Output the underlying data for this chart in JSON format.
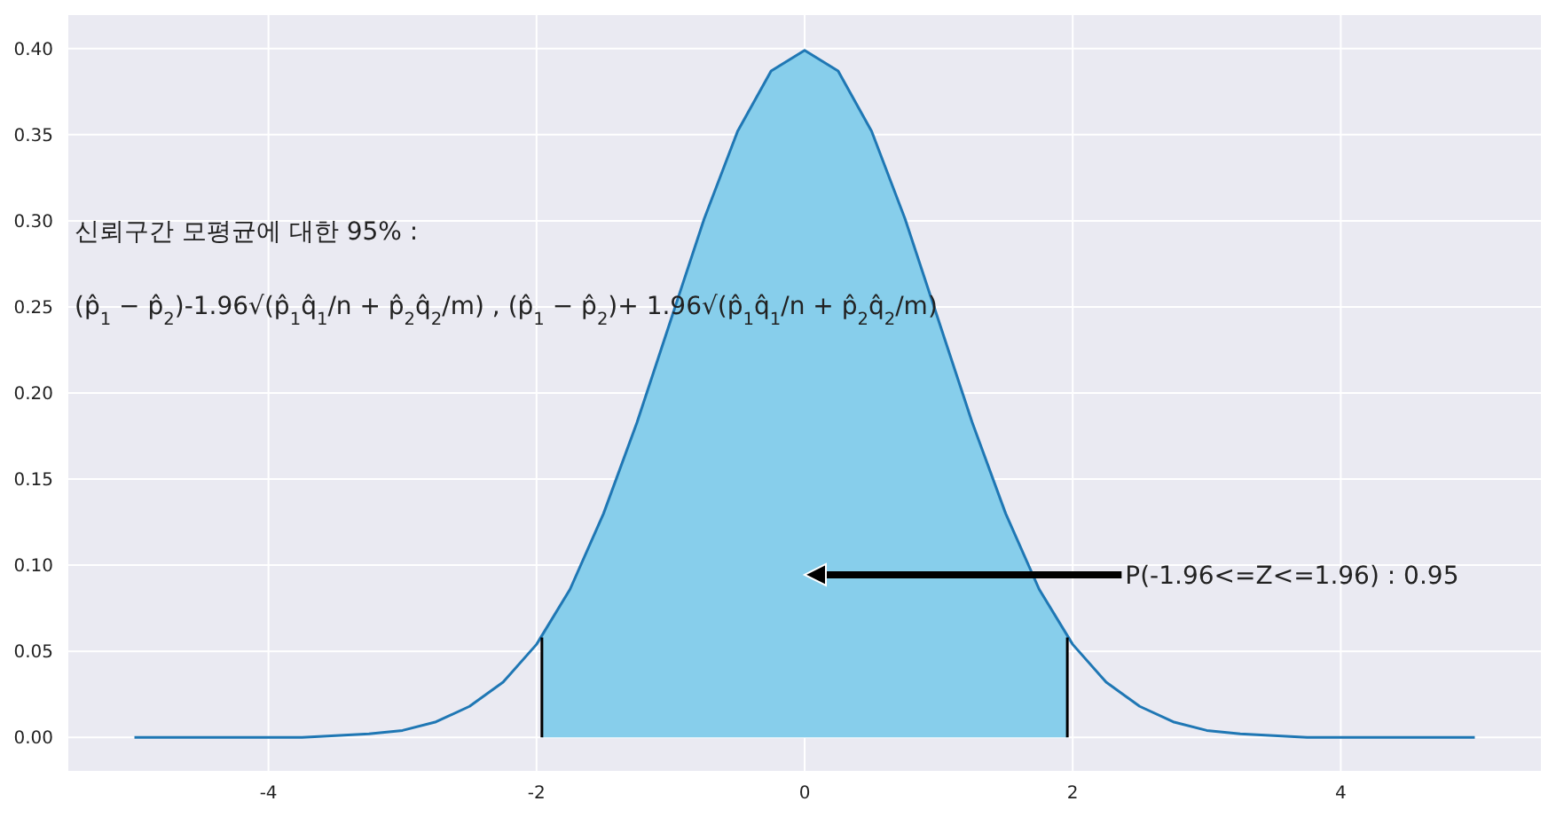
{
  "chart_data": {
    "type": "line",
    "xlim": [
      -5.5,
      5.5
    ],
    "xticks": [
      -4,
      -2,
      0,
      2,
      4
    ],
    "ylim": [
      -0.02,
      0.42
    ],
    "yticks": [
      {
        "value": 0,
        "label": "0.00"
      },
      {
        "value": 0.05,
        "label": "0.05"
      },
      {
        "value": 0.1,
        "label": "0.10"
      },
      {
        "value": 0.15,
        "label": "0.15"
      },
      {
        "value": 0.2,
        "label": "0.20"
      },
      {
        "value": 0.25,
        "label": "0.25"
      },
      {
        "value": 0.3,
        "label": "0.30"
      },
      {
        "value": 0.35,
        "label": "0.35"
      },
      {
        "value": 0.4,
        "label": "0.40"
      }
    ],
    "grid": true,
    "series": [
      {
        "type": "area",
        "color": "#87ceeb",
        "x": [
          -1.96,
          -1.75,
          -1.5,
          -1.25,
          -1,
          -0.75,
          -0.5,
          -0.25,
          0,
          0.25,
          0.5,
          0.75,
          1,
          1.25,
          1.5,
          1.75,
          1.96
        ],
        "values": [
          0.058,
          0.086,
          0.13,
          0.183,
          0.242,
          0.301,
          0.352,
          0.387,
          0.399,
          0.387,
          0.352,
          0.301,
          0.242,
          0.183,
          0.13,
          0.086,
          0.058
        ]
      },
      {
        "color": "#1f77b4",
        "x": [
          -5,
          -4.5,
          -4,
          -3.75,
          -3.5,
          -3.25,
          -3,
          -2.75,
          -2.5,
          -2.25,
          -2,
          -1.75,
          -1.5,
          -1.25,
          -1,
          -0.75,
          -0.5,
          -0.25,
          0,
          0.25,
          0.5,
          0.75,
          1,
          1.25,
          1.5,
          1.75,
          2,
          2.25,
          2.5,
          2.75,
          3,
          3.25,
          3.5,
          3.75,
          4,
          4.5,
          5
        ],
        "values": [
          0,
          0,
          0,
          0,
          0.001,
          0.002,
          0.004,
          0.009,
          0.018,
          0.032,
          0.054,
          0.086,
          0.13,
          0.183,
          0.242,
          0.301,
          0.352,
          0.387,
          0.399,
          0.387,
          0.352,
          0.301,
          0.242,
          0.183,
          0.13,
          0.086,
          0.054,
          0.032,
          0.018,
          0.009,
          0.004,
          0.002,
          0.001,
          0,
          0,
          0,
          0
        ]
      },
      {
        "color": "#000000",
        "x": [
          -1.96,
          -1.96
        ],
        "values": [
          0,
          0.058
        ]
      },
      {
        "color": "#000000",
        "x": [
          1.96,
          1.96
        ],
        "values": [
          0,
          0.058
        ]
      }
    ],
    "annotations": [
      "신뢰구간 모평균에 대한 95% :",
      "(p̂$_{1}$ − p̂$_{2}$)-1.96√(p̂$_{1}$q̂$_{1}$/n + p̂$_{2}$q̂$_{2}$/m) , (p̂$_{1}$ − p̂$_{2}$)+ 1.96√(p̂$_{1}$q̂$_{1}$/n + p̂$_{2}$q̂$_{2}$/m)",
      "P(-1.96<=Z<=1.96) : 0.95"
    ]
  }
}
